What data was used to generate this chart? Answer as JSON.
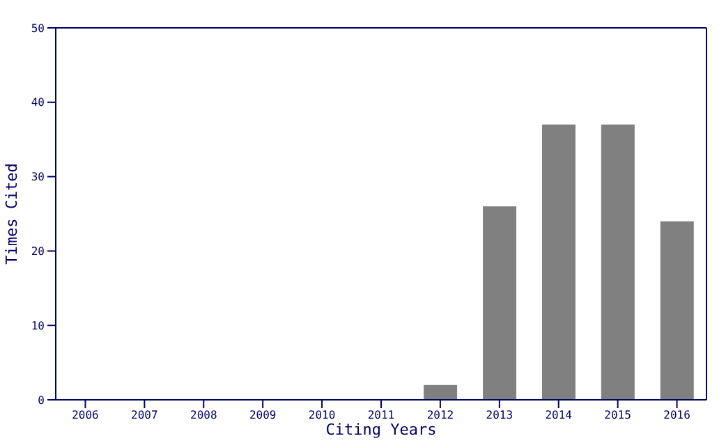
{
  "chart_data": {
    "type": "bar",
    "xlabel": "Citing Years",
    "ylabel": "Times Cited",
    "categories": [
      "2006",
      "2007",
      "2008",
      "2009",
      "2010",
      "2011",
      "2012",
      "2013",
      "2014",
      "2015",
      "2016"
    ],
    "values": [
      0,
      0,
      0,
      0,
      0,
      0,
      2,
      26,
      37,
      37,
      24
    ],
    "color": "#808080",
    "ylim": [
      0,
      50
    ],
    "yticks": [
      0,
      10,
      20,
      30,
      40,
      50
    ],
    "grid": false,
    "legend": false
  }
}
